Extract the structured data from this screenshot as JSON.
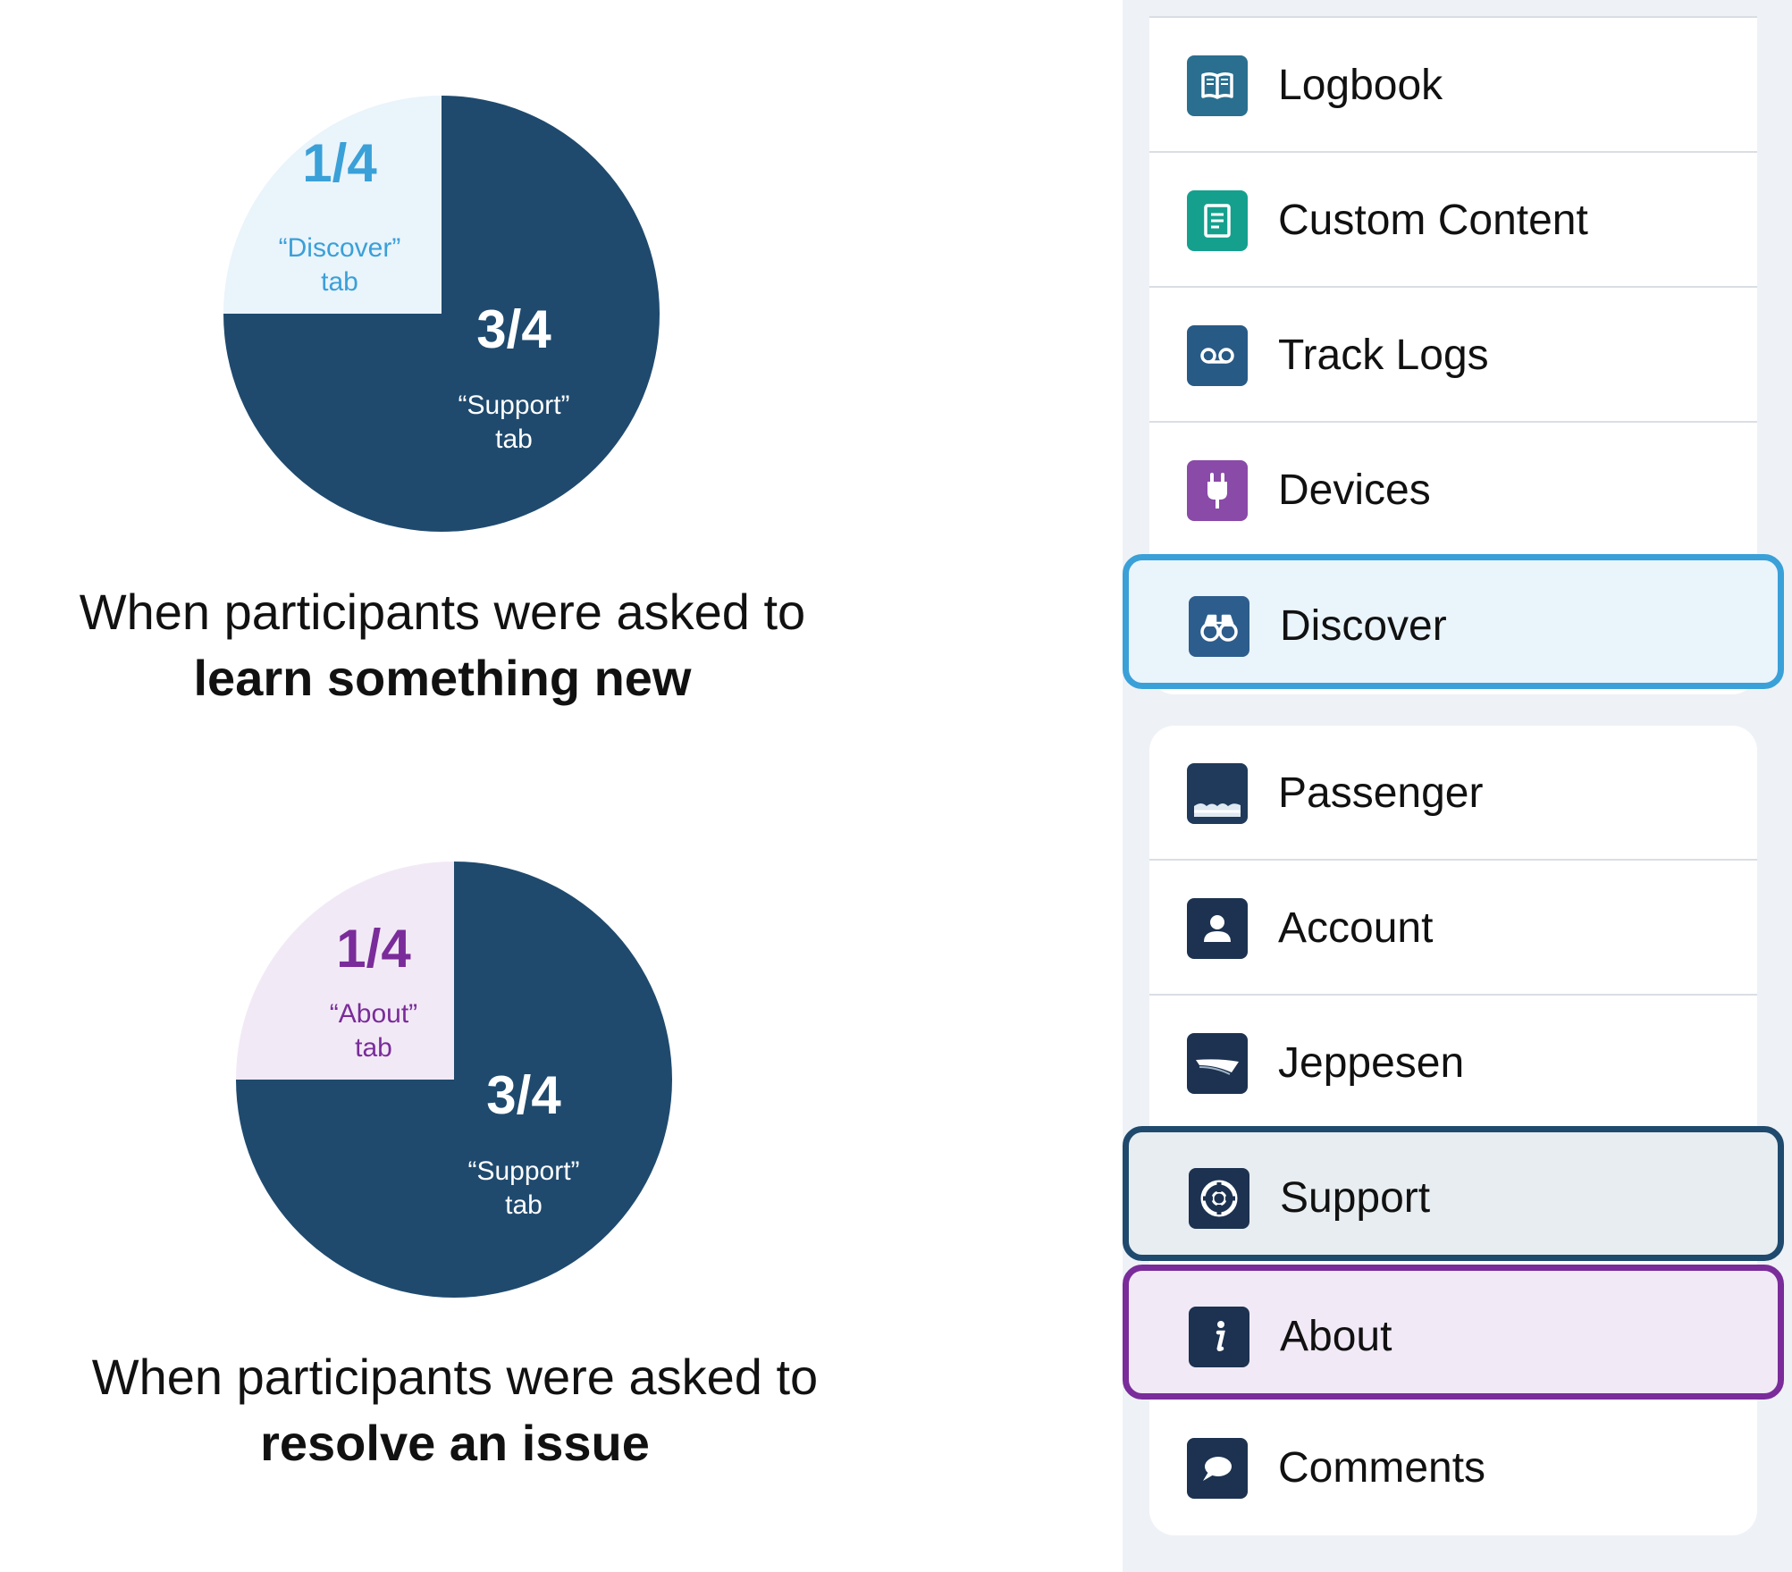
{
  "chart_data": [
    {
      "type": "pie",
      "slices": [
        {
          "fraction_label": "1/4",
          "tab_label": "“Discover”",
          "tab_word": "tab",
          "value": 0.25,
          "color": "#eaf4fb",
          "text_color": "#3aa0d8"
        },
        {
          "fraction_label": "3/4",
          "tab_label": "“Support”",
          "tab_word": "tab",
          "value": 0.75,
          "color": "#1f4a6e",
          "text_color": "#ffffff"
        }
      ],
      "caption_line1": "When participants were asked to",
      "caption_line2": "learn something new"
    },
    {
      "type": "pie",
      "slices": [
        {
          "fraction_label": "1/4",
          "tab_label": "“About”",
          "tab_word": "tab",
          "value": 0.25,
          "color": "#f2e9f6",
          "text_color": "#7a2c9a"
        },
        {
          "fraction_label": "3/4",
          "tab_label": "“Support”",
          "tab_word": "tab",
          "value": 0.75,
          "color": "#1f4a6e",
          "text_color": "#ffffff"
        }
      ],
      "caption_line1": "When participants were asked to",
      "caption_line2": "resolve an issue"
    }
  ],
  "menu": {
    "group1": [
      {
        "label": "Logbook",
        "icon": "book-icon",
        "icon_color": "#2a6f8f"
      },
      {
        "label": "Custom Content",
        "icon": "document-icon",
        "icon_color": "#15a08e"
      },
      {
        "label": "Track Logs",
        "icon": "voicemail-icon",
        "icon_color": "#285a86"
      },
      {
        "label": "Devices",
        "icon": "plug-icon",
        "icon_color": "#8a4aa8"
      },
      {
        "label": "Discover",
        "icon": "binoculars-icon",
        "icon_color": "#2d5d8c",
        "highlight": "discover"
      }
    ],
    "group2": [
      {
        "label": "Passenger",
        "icon": "passenger-icon",
        "icon_color": "#1f3a5a"
      },
      {
        "label": "Account",
        "icon": "person-icon",
        "icon_color": "#1c3250"
      },
      {
        "label": "Jeppesen",
        "icon": "jeppesen-icon",
        "icon_color": "#1c3250"
      },
      {
        "label": "Support",
        "icon": "lifebuoy-icon",
        "icon_color": "#1c3250",
        "highlight": "support"
      },
      {
        "label": "About",
        "icon": "info-icon",
        "icon_color": "#1c3250",
        "highlight": "about"
      },
      {
        "label": "Comments",
        "icon": "speech-bubble-icon",
        "icon_color": "#1c3250"
      }
    ],
    "highlight_colors": {
      "discover": {
        "border": "#3aa0d8",
        "fill": "#eaf4fb"
      },
      "support": {
        "border": "#1f4a6e",
        "fill": "#e8edf1"
      },
      "about": {
        "border": "#7a2c9a",
        "fill": "#f2e9f6"
      }
    }
  }
}
